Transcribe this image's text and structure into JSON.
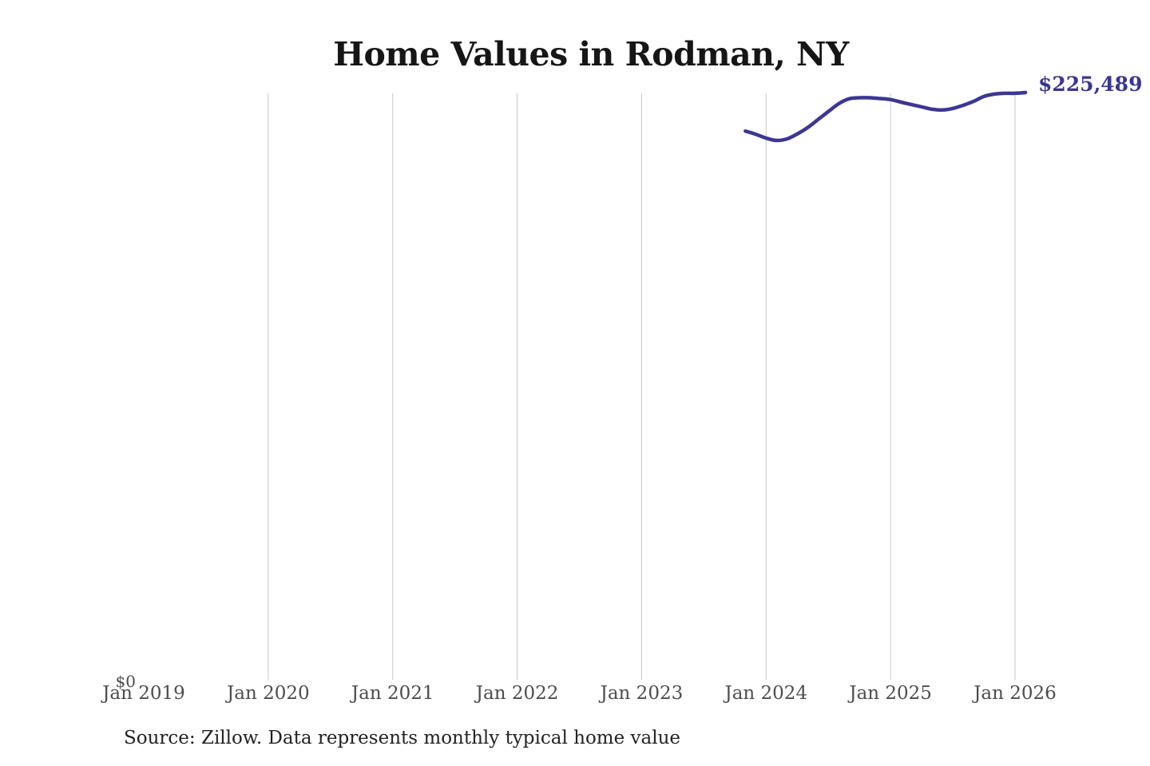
{
  "chart": {
    "title": "Home Values in Rodman, NY",
    "latest_value_label": "$225,489",
    "y_zero_label": "$0",
    "source_note": "Source: Zillow. Data represents monthly typical home value"
  },
  "colors": {
    "line": "#3d3693",
    "value_label": "#3b3692",
    "gridline": "#c9c9c9",
    "axis_text": "#4d4d4d",
    "title_text": "#161616",
    "source_text": "#222222"
  },
  "chart_data": {
    "type": "line",
    "title": "Home Values in Rodman, NY",
    "xlabel": "",
    "ylabel": "",
    "x_tick_labels": [
      "Jan 2019",
      "Jan 2020",
      "Jan 2021",
      "Jan 2022",
      "Jan 2023",
      "Jan 2024",
      "Jan 2025",
      "Jan 2026"
    ],
    "x_tick_years": [
      2019,
      2020,
      2021,
      2022,
      2023,
      2024,
      2025,
      2026
    ],
    "gridline_years": [
      2020,
      2021,
      2022,
      2023,
      2024,
      2025,
      2026
    ],
    "y_tick_labels": [
      "$0"
    ],
    "ylim": [
      0,
      225489
    ],
    "grid": "vertical-only",
    "legend_position": "none",
    "end_annotation": "$225,489",
    "series": [
      {
        "name": "Monthly typical home value",
        "x": [
          "2023-11",
          "2023-12",
          "2024-01",
          "2024-02",
          "2024-03",
          "2024-04",
          "2024-05",
          "2024-06",
          "2024-07",
          "2024-08",
          "2024-09",
          "2024-10",
          "2024-11",
          "2024-12",
          "2025-01",
          "2025-02",
          "2025-03",
          "2025-04",
          "2025-05",
          "2025-06",
          "2025-07",
          "2025-08",
          "2025-09",
          "2025-10",
          "2025-11",
          "2025-12",
          "2026-01",
          "2026-02"
        ],
        "values": [
          210700,
          209500,
          208000,
          207100,
          207700,
          209600,
          212000,
          215100,
          218200,
          221200,
          223100,
          223500,
          223500,
          223200,
          222800,
          221800,
          220900,
          220000,
          219100,
          218800,
          219400,
          220600,
          222100,
          224000,
          224900,
          225200,
          225200,
          225489
        ]
      }
    ]
  }
}
